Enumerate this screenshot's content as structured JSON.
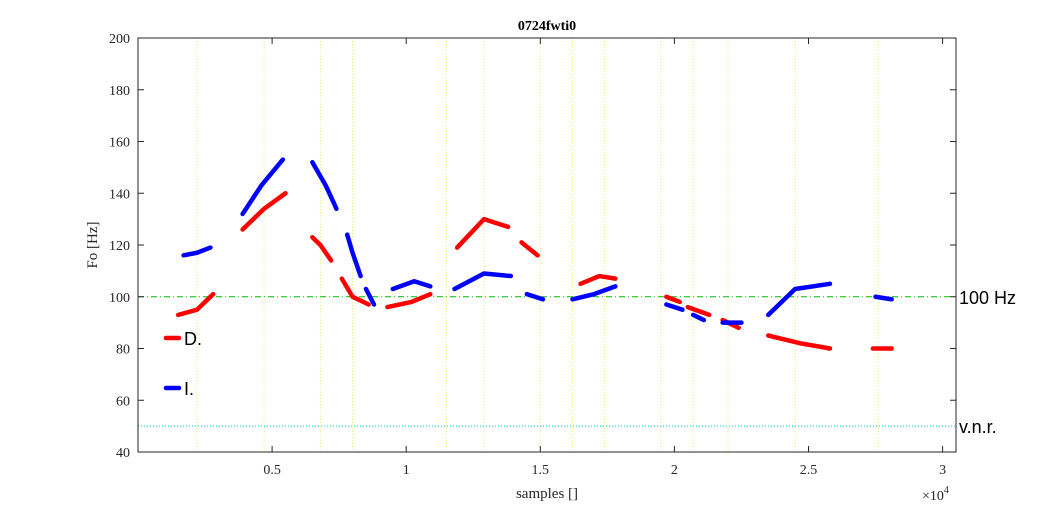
{
  "chart_data": {
    "type": "line",
    "title": "0724fwti0",
    "xlabel": "samples []",
    "ylabel": "Fo [Hz]",
    "xlim": [
      0,
      30500
    ],
    "ylim": [
      40,
      200
    ],
    "x_ticks": [
      5000,
      10000,
      15000,
      20000,
      25000,
      30000
    ],
    "x_tick_labels": [
      "0.5",
      "1",
      "1.5",
      "2",
      "2.5",
      "3"
    ],
    "x_exponent_base": "×10",
    "x_exponent_power": "4",
    "y_ticks": [
      40,
      60,
      80,
      100,
      120,
      140,
      160,
      180,
      200
    ],
    "y_tick_labels": [
      "40",
      "60",
      "80",
      "100",
      "120",
      "140",
      "160",
      "180",
      "200"
    ],
    "reference_lines": [
      {
        "y": 100,
        "label": "100 Hz",
        "color": "#00bb00",
        "style": "dash-dot"
      },
      {
        "y": 50,
        "label": "v.n.r.",
        "color": "#00cccc",
        "style": "dotted"
      }
    ],
    "vertical_markers": [
      2200,
      4700,
      6800,
      8000,
      11500,
      12900,
      15000,
      16200,
      17400,
      19500,
      20700,
      22000,
      24500,
      27600
    ],
    "vertical_marker_color": "#e6f06e",
    "legend": {
      "placement": "left",
      "entries": [
        {
          "label": "D.",
          "color": "#ff0000"
        },
        {
          "label": "I.",
          "color": "#0000ff"
        }
      ]
    },
    "series": [
      {
        "name": "D.",
        "color": "#ff0000",
        "segments": [
          [
            [
              1500,
              93
            ],
            [
              2200,
              95
            ],
            [
              2800,
              101
            ]
          ],
          [
            [
              3900,
              126
            ],
            [
              4700,
              134
            ],
            [
              5500,
              140
            ]
          ],
          [
            [
              6500,
              123
            ],
            [
              6800,
              120
            ],
            [
              7200,
              114
            ]
          ],
          [
            [
              7600,
              107
            ],
            [
              8000,
              100
            ],
            [
              8600,
              97
            ]
          ],
          [
            [
              9300,
              96
            ],
            [
              10200,
              98
            ],
            [
              10900,
              101
            ]
          ],
          [
            [
              11900,
              119
            ],
            [
              12900,
              130
            ],
            [
              13800,
              127
            ]
          ],
          [
            [
              14300,
              121
            ],
            [
              14900,
              116
            ]
          ],
          [
            [
              16500,
              105
            ],
            [
              17200,
              108
            ],
            [
              17800,
              107
            ]
          ],
          [
            [
              19700,
              100
            ],
            [
              20200,
              98
            ]
          ],
          [
            [
              20500,
              96
            ],
            [
              21300,
              93
            ]
          ],
          [
            [
              21800,
              91
            ],
            [
              22400,
              88
            ]
          ],
          [
            [
              23500,
              85
            ],
            [
              24700,
              82
            ],
            [
              25800,
              80
            ]
          ],
          [
            [
              27400,
              80
            ],
            [
              28100,
              80
            ]
          ]
        ]
      },
      {
        "name": "I.",
        "color": "#0000ff",
        "segments": [
          [
            [
              1700,
              116
            ],
            [
              2200,
              117
            ],
            [
              2700,
              119
            ]
          ],
          [
            [
              3900,
              132
            ],
            [
              4600,
              143
            ],
            [
              5400,
              153
            ]
          ],
          [
            [
              6500,
              152
            ],
            [
              7000,
              143
            ],
            [
              7400,
              134
            ]
          ],
          [
            [
              7800,
              124
            ],
            [
              8000,
              117
            ],
            [
              8300,
              108
            ]
          ],
          [
            [
              8500,
              103
            ],
            [
              8800,
              97
            ]
          ],
          [
            [
              9500,
              103
            ],
            [
              10300,
              106
            ],
            [
              10900,
              104
            ]
          ],
          [
            [
              11800,
              103
            ],
            [
              12900,
              109
            ],
            [
              13900,
              108
            ]
          ],
          [
            [
              14500,
              101
            ],
            [
              15100,
              99
            ]
          ],
          [
            [
              16200,
              99
            ],
            [
              17000,
              101
            ],
            [
              17800,
              104
            ]
          ],
          [
            [
              19700,
              97
            ],
            [
              20300,
              95
            ]
          ],
          [
            [
              20700,
              93
            ],
            [
              21100,
              91
            ]
          ],
          [
            [
              21800,
              90
            ],
            [
              22500,
              90
            ]
          ],
          [
            [
              23500,
              93
            ],
            [
              24500,
              103
            ],
            [
              25800,
              105
            ]
          ],
          [
            [
              27500,
              100
            ],
            [
              28100,
              99
            ]
          ]
        ]
      }
    ]
  }
}
